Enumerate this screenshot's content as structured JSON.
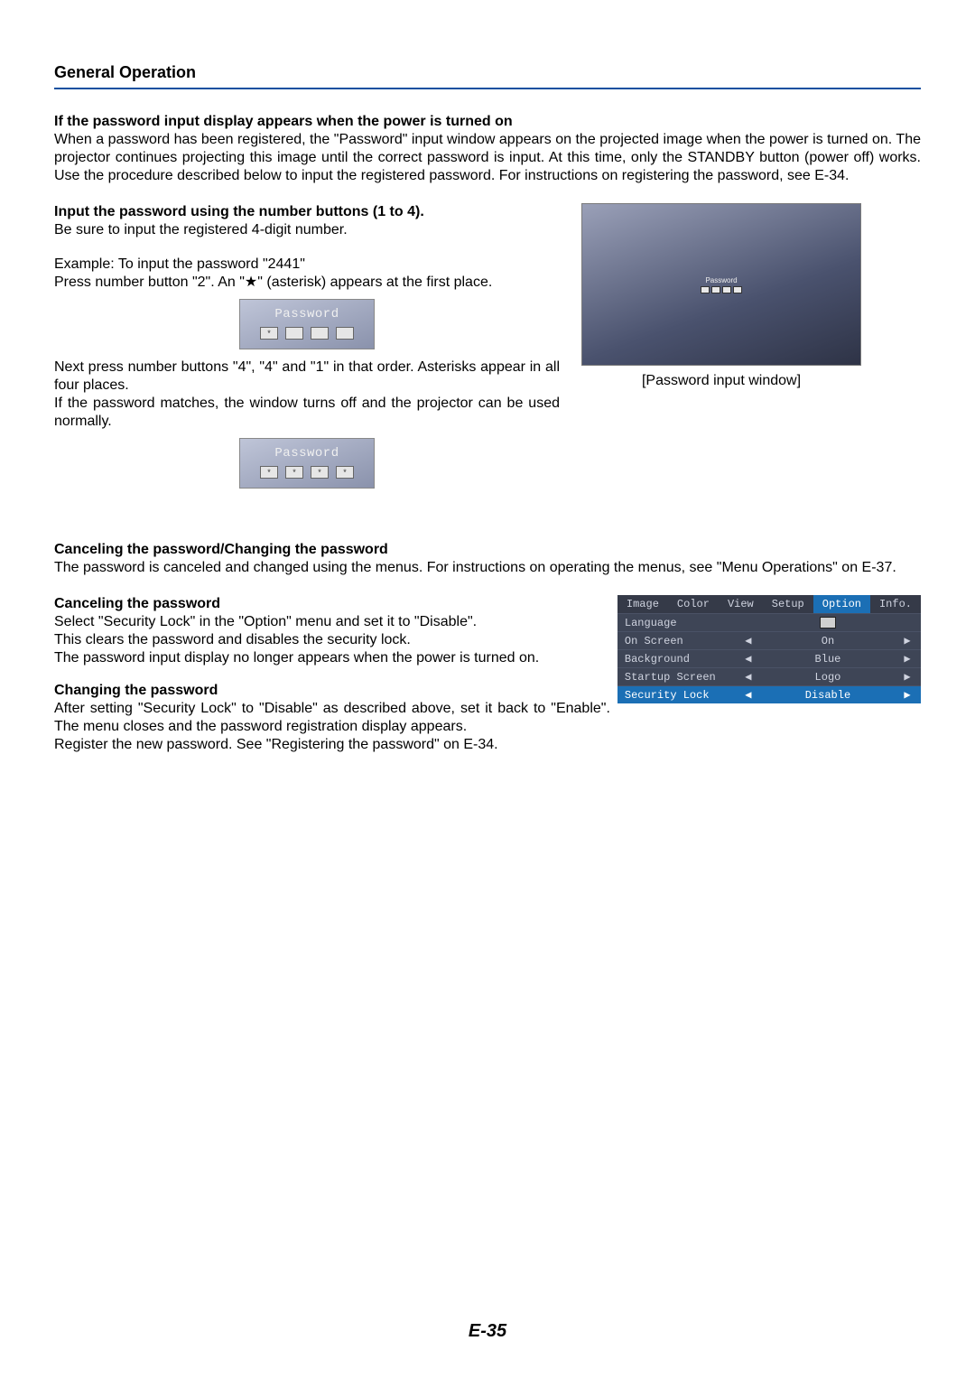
{
  "section_title": "General Operation",
  "intro": {
    "heading": "If the password input display appears when the power is turned on",
    "body": "When a password has been registered, the \"Password\" input window appears on the projected image when the power is turned on. The projector continues projecting this image until the correct password is input. At this time, only the STANDBY button (power off) works. Use the procedure described below to input the registered password. For instructions on registering the password, see E-34."
  },
  "input_pw": {
    "heading": "Input the password using the number buttons (1 to 4).",
    "line1": "Be sure to input the registered 4-digit number.",
    "example1": "Example: To input the password \"2441\"",
    "example2": "Press number button \"2\". An \"★\" (asterisk) appears at the first place.",
    "next1": "Next press number buttons \"4\", \"4\" and \"1\" in that order. Asterisks appear in all four places.",
    "next2": "If the password matches, the window turns off and the projector can be used normally."
  },
  "pw_window_caption": "[Password input window]",
  "pw_label": "Password",
  "cancel_change": {
    "heading": "Canceling the password/Changing the password",
    "body": "The password is canceled and changed using the menus. For instructions on operating the menus, see \"Menu Operations\" on E-37."
  },
  "cancel": {
    "heading": "Canceling the password",
    "l1": "Select \"Security Lock\" in the \"Option\" menu and set it to \"Disable\".",
    "l2": "This clears the password and disables the security lock.",
    "l3": "The password input display no longer appears when the power is turned on."
  },
  "change": {
    "heading": "Changing the password",
    "l1": "After setting \"Security Lock\" to \"Disable\" as described above, set it back to \"Enable\". The menu closes and the password registration display appears.",
    "l2": "Register the new password. See \"Registering the password\" on E-34."
  },
  "menu": {
    "tabs": [
      "Image",
      "Color",
      "View",
      "Setup",
      "Option",
      "Info."
    ],
    "active_tab_index": 4,
    "rows": [
      {
        "label": "Language",
        "value": "",
        "box": true
      },
      {
        "label": "On Screen",
        "value": "On"
      },
      {
        "label": "Background",
        "value": "Blue"
      },
      {
        "label": "Startup Screen",
        "value": "Logo"
      },
      {
        "label": "Security Lock",
        "value": "Disable",
        "selected": true
      }
    ]
  },
  "page_number": "E-35",
  "colors": {
    "rule": "#1050a0",
    "menu_bg": "#3e4556",
    "menu_active": "#1b6fb5",
    "text": "#000000"
  }
}
